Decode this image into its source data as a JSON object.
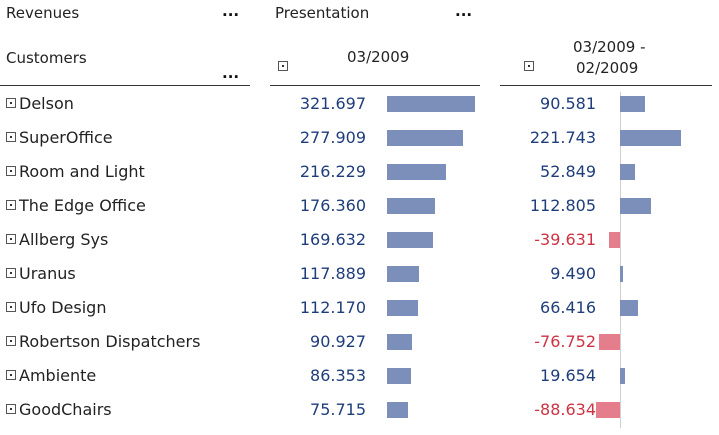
{
  "header": {
    "measure_label": "Revenues",
    "presentation_label": "Presentation",
    "dimension_label": "Customers",
    "ellipsis": "...",
    "col1_title": "03/2009",
    "col2_title_line1": "03/2009 -",
    "col2_title_line2": "02/2009"
  },
  "colors": {
    "positive": "#7b8fba",
    "negative": "#e47e8d",
    "negative_text": "#cc3344",
    "value_text": "#1f3d7a"
  },
  "rows": [
    {
      "customer": "Delson",
      "value": "321.697",
      "delta": "90.581"
    },
    {
      "customer": "SuperOffice",
      "value": "277.909",
      "delta": "221.743"
    },
    {
      "customer": "Room and Light",
      "value": "216.229",
      "delta": "52.849"
    },
    {
      "customer": "The Edge Office",
      "value": "176.360",
      "delta": "112.805"
    },
    {
      "customer": "Allberg Sys",
      "value": "169.632",
      "delta": "-39.631"
    },
    {
      "customer": "Uranus",
      "value": "117.889",
      "delta": "9.490"
    },
    {
      "customer": "Ufo Design",
      "value": "112.170",
      "delta": "66.416"
    },
    {
      "customer": "Robertson Dispatchers",
      "value": "90.927",
      "delta": "-76.752"
    },
    {
      "customer": "Ambiente",
      "value": "86.353",
      "delta": "19.654"
    },
    {
      "customer": "GoodChairs",
      "value": "75.715",
      "delta": "-88.634"
    }
  ]
}
